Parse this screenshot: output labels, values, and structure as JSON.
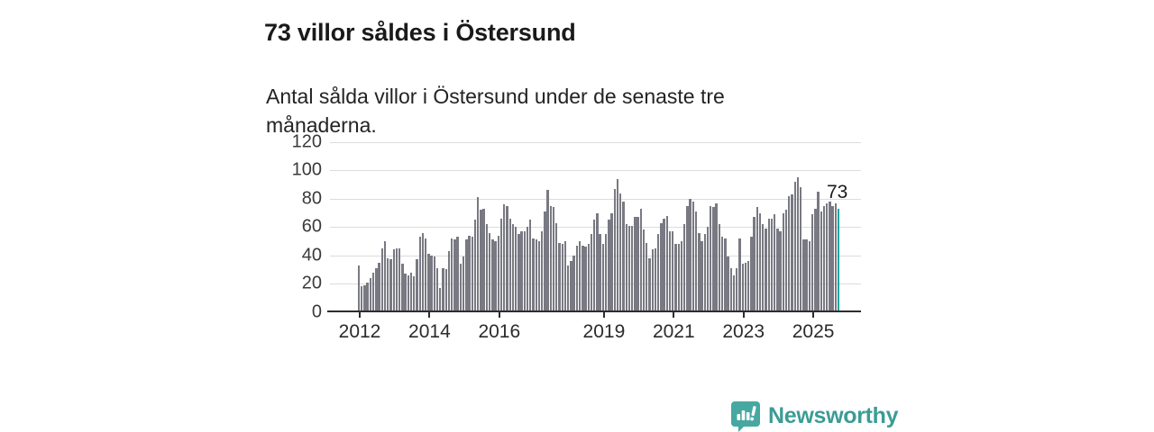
{
  "header": {
    "title": "73 villor såldes i Östersund",
    "subtitle": "Antal sålda villor i Östersund under de senaste tre månaderna."
  },
  "annotation": {
    "last_value_label": "73"
  },
  "branding": {
    "name": "Newsworthy",
    "icon": "newsworthy-chart-bubble-icon",
    "text_color": "#3b9c95",
    "icon_color": "#47a8a1"
  },
  "colors": {
    "bar": "#797983",
    "highlight": "#12a79d",
    "grid": "#dcdcdc",
    "axis": "#2d2d2d",
    "text": "#1a1a1a"
  },
  "chart_data": {
    "type": "bar",
    "title": "73 villor såldes i Östersund",
    "subtitle": "Antal sålda villor i Östersund under de senaste tre månaderna.",
    "unit": "antal sålda villor (rullande tre månader)",
    "frequency": "monthly",
    "x_start": "2012-01",
    "x_end": "2025-10",
    "ylim": [
      0,
      120
    ],
    "y_ticks": [
      0,
      20,
      40,
      60,
      80,
      100,
      120
    ],
    "x_ticks": [
      2012,
      2014,
      2016,
      2019,
      2021,
      2023,
      2025
    ],
    "grid": true,
    "legend": "none",
    "highlight_last": true,
    "last_value": 73,
    "values": [
      33,
      18,
      19,
      21,
      24,
      28,
      31,
      35,
      45,
      50,
      38,
      37,
      44,
      45,
      45,
      34,
      27,
      26,
      28,
      25,
      37,
      53,
      56,
      52,
      41,
      40,
      39,
      31,
      17,
      31,
      30,
      43,
      52,
      51,
      53,
      34,
      39,
      51,
      54,
      53,
      65,
      81,
      72,
      73,
      62,
      56,
      51,
      50,
      54,
      66,
      76,
      75,
      66,
      62,
      60,
      55,
      57,
      57,
      60,
      65,
      52,
      51,
      50,
      57,
      71,
      86,
      75,
      74,
      63,
      49,
      48,
      50,
      33,
      36,
      40,
      47,
      50,
      47,
      46,
      48,
      55,
      65,
      70,
      55,
      48,
      55,
      65,
      70,
      87,
      94,
      84,
      78,
      62,
      61,
      61,
      67,
      67,
      73,
      58,
      49,
      38,
      44,
      45,
      55,
      63,
      66,
      68,
      57,
      57,
      48,
      48,
      50,
      62,
      75,
      80,
      78,
      71,
      56,
      50,
      55,
      60,
      75,
      74,
      77,
      62,
      53,
      52,
      39,
      31,
      26,
      31,
      52,
      34,
      35,
      36,
      53,
      67,
      74,
      70,
      62,
      59,
      66,
      66,
      69,
      59,
      57,
      70,
      72,
      82,
      83,
      92,
      95,
      88,
      51,
      51,
      50,
      69,
      73,
      85,
      71,
      75,
      77,
      78,
      75,
      77,
      73
    ]
  }
}
